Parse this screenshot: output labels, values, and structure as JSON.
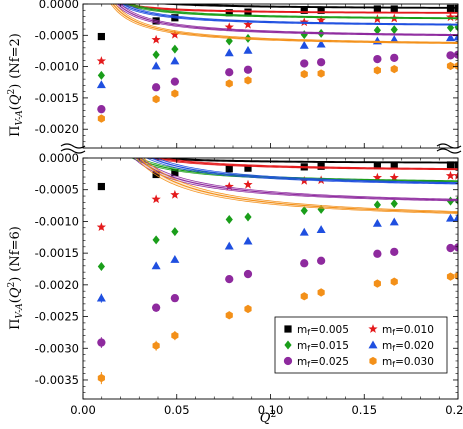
{
  "chart_data": [
    {
      "type": "scatter",
      "panel": "top",
      "ylabel": "Π_{V-A}(Q^2) (Nf=2)",
      "xlabel": "",
      "xlim": [
        0,
        0.2
      ],
      "ylim": [
        -0.0023,
        0.0
      ],
      "x_ticks": [
        0.0,
        0.05,
        0.1,
        0.15,
        0.2
      ],
      "y_ticks": [
        0.0,
        -0.0005,
        -0.001,
        -0.0015,
        -0.002
      ],
      "y_tick_labels": [
        "0.0000",
        "-0.0005",
        "-0.0010",
        "-0.0015",
        "-0.0020"
      ],
      "grid": false,
      "x": [
        0.0098,
        0.039,
        0.049,
        0.078,
        0.088,
        0.118,
        0.127,
        0.157,
        0.166,
        0.196,
        0.2
      ],
      "series": [
        {
          "name": "m_f=0.005",
          "color": "#000000",
          "marker": "square",
          "fit": [
            -8.25e-05,
            4.15e-06,
            0.00112
          ],
          "y": [
            -0.00052,
            -0.00027,
            -0.00022,
            -0.00014,
            -0.00013,
            -0.0001,
            -0.0001,
            -8e-05,
            -8e-05,
            -7e-05,
            -7e-05
          ]
        },
        {
          "name": "m_f=0.010",
          "color": "#e41a1c",
          "marker": "star",
          "fit": [
            -0.00016,
            3.7e-06,
            0.00168
          ],
          "y": [
            -0.00091,
            -0.00057,
            -0.00049,
            -0.00037,
            -0.00033,
            -0.00029,
            -0.00026,
            -0.00024,
            -0.00023,
            -0.00021,
            -0.00021
          ]
        },
        {
          "name": "m_f=0.015",
          "color": "#1a9e1a",
          "marker": "diamond",
          "fit": [
            -0.00026,
            6.5e-06,
            0.00124
          ],
          "y": [
            -0.00114,
            -0.00081,
            -0.00072,
            -0.00059,
            -0.00055,
            -0.00049,
            -0.00047,
            -0.00042,
            -0.00041,
            -0.00038,
            -0.00037
          ]
        },
        {
          "name": "m_f=0.020",
          "color": "#1f4fe0",
          "marker": "triangle",
          "fit": [
            -0.00037,
            8.2e-06,
            0.00125
          ],
          "y": [
            -0.00129,
            -0.00099,
            -0.00091,
            -0.00078,
            -0.00074,
            -0.00066,
            -0.00064,
            -0.00059,
            -0.00057,
            -0.00054,
            -0.00053
          ]
        },
        {
          "name": "m_f=0.025",
          "color": "#8e2a9e",
          "marker": "circle",
          "fit": [
            -0.00055,
            1.08e-05,
            0.00114
          ],
          "y": [
            -0.00168,
            -0.00133,
            -0.00124,
            -0.00109,
            -0.00105,
            -0.00095,
            -0.00093,
            -0.00088,
            -0.00086,
            -0.00082,
            -0.00081
          ]
        },
        {
          "name": "m_f=0.030",
          "color": "#f39019",
          "marker": "hexagon",
          "fit": [
            -0.00068,
            1.17e-05,
            0.00123
          ],
          "y": [
            -0.00183,
            -0.00152,
            -0.00143,
            -0.00127,
            -0.00122,
            -0.00112,
            -0.00111,
            -0.00106,
            -0.00104,
            -0.00099,
            -0.00099
          ]
        }
      ]
    },
    {
      "type": "scatter",
      "panel": "bottom",
      "ylabel": "Π_{V-A}(Q^2) (Nf=6)",
      "xlabel": "Q^2",
      "xlim": [
        0,
        0.2
      ],
      "ylim": [
        -0.0038,
        0.0
      ],
      "x_ticks": [
        0.0,
        0.05,
        0.1,
        0.15,
        0.2
      ],
      "x_tick_labels": [
        "0.00",
        "0.05",
        "0.10",
        "0.15",
        "0.20"
      ],
      "y_ticks": [
        0.0,
        -0.0005,
        -0.001,
        -0.0015,
        -0.002,
        -0.0025,
        -0.003,
        -0.0035
      ],
      "y_tick_labels": [
        "0.0000",
        "-0.0005",
        "-0.0010",
        "-0.0015",
        "-0.0020",
        "-0.0025",
        "-0.0030",
        "-0.0035"
      ],
      "grid": false,
      "legend_position": "bottom-right",
      "x": [
        0.0098,
        0.039,
        0.049,
        0.078,
        0.088,
        0.118,
        0.127,
        0.157,
        0.166,
        0.196,
        0.2
      ],
      "series": [
        {
          "name": "m_f=0.005",
          "color": "#000000",
          "marker": "square",
          "fit": [
            -9e-05,
            3.6e-06,
            0.00098
          ],
          "y": [
            -0.00045,
            -0.00026,
            -0.00023,
            -0.00017,
            -0.00016,
            -0.00014,
            -0.00013,
            -0.00012,
            -0.00012,
            -0.00011,
            -0.00011
          ]
        },
        {
          "name": "m_f=0.010",
          "color": "#e41a1c",
          "marker": "star",
          "fit": [
            -0.00022,
            8.9e-06,
            0.00108
          ],
          "y": [
            -0.00109,
            -0.00065,
            -0.00058,
            -0.00045,
            -0.00042,
            -0.00036,
            -0.00035,
            -0.00031,
            -0.00031,
            -0.00028,
            -0.00028
          ]
        },
        {
          "name": "m_f=0.015",
          "color": "#1a9e1a",
          "marker": "diamond",
          "fit": [
            -0.00043,
            1.26e-05,
            0.00109
          ],
          "y": [
            -0.00171,
            -0.00129,
            -0.00116,
            -0.00097,
            -0.00093,
            -0.00083,
            -0.00081,
            -0.00074,
            -0.00072,
            -0.00068,
            -0.00067
          ]
        },
        {
          "name": "m_f=0.020",
          "color": "#1f4fe0",
          "marker": "triangle",
          "fit": [
            -0.00049,
            1.85e-05,
            0.00118
          ],
          "y": [
            -0.00221,
            -0.0017,
            -0.0016,
            -0.00139,
            -0.00131,
            -0.00117,
            -0.00113,
            -0.00103,
            -0.00101,
            -0.00095,
            -0.00094
          ]
        },
        {
          "name": "m_f=0.025",
          "color": "#8e2a9e",
          "marker": "circle",
          "fit": [
            -0.00078,
            2.34e-05,
            0.00107
          ],
          "y": [
            -0.00291,
            -0.00236,
            -0.00221,
            -0.00191,
            -0.00183,
            -0.00166,
            -0.00162,
            -0.00151,
            -0.00148,
            -0.00142,
            -0.00141
          ]
        },
        {
          "name": "m_f=0.030",
          "color": "#f39019",
          "marker": "hexagon",
          "fit": [
            -0.00102,
            3.22e-05,
            0.00119
          ],
          "y": [
            -0.00347,
            -0.00296,
            -0.0028,
            -0.00248,
            -0.00238,
            -0.00218,
            -0.00212,
            -0.00198,
            -0.00195,
            -0.00187,
            -0.00186
          ]
        }
      ]
    }
  ],
  "legend": {
    "entries": [
      {
        "label": "m",
        "sub": "f",
        "value": "=0.005",
        "series_index": 0
      },
      {
        "label": "m",
        "sub": "f",
        "value": "=0.010",
        "series_index": 1
      },
      {
        "label": "m",
        "sub": "f",
        "value": "=0.015",
        "series_index": 2
      },
      {
        "label": "m",
        "sub": "f",
        "value": "=0.020",
        "series_index": 3
      },
      {
        "label": "m",
        "sub": "f",
        "value": "=0.025",
        "series_index": 4
      },
      {
        "label": "m",
        "sub": "f",
        "value": "=0.030",
        "series_index": 5
      }
    ]
  },
  "axis_text": {
    "pi": "Π",
    "pi_sub": "V-A",
    "arg_open": "(",
    "q": "Q",
    "sup": "2",
    "arg_close": ")",
    "top_suffix": "(Nf=2)",
    "bottom_suffix": "(Nf=6)",
    "xtitle": "Q",
    "xtitle_sup": "2"
  }
}
